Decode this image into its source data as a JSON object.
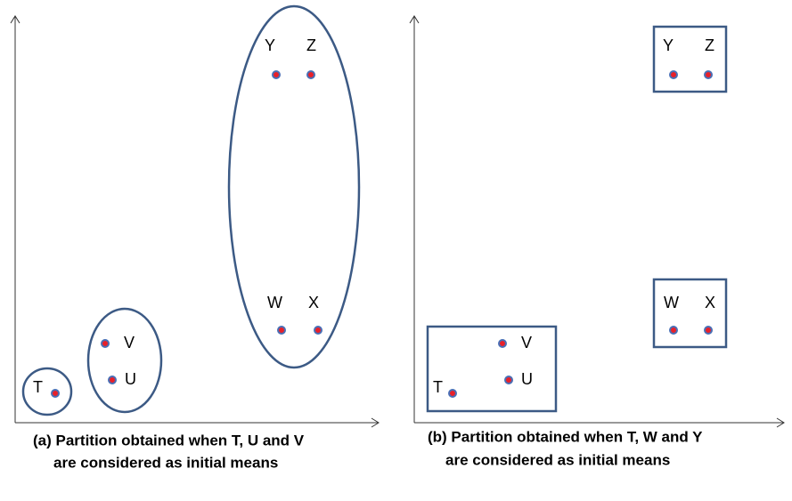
{
  "panels": [
    {
      "points": [
        "T",
        "U",
        "V",
        "W",
        "X",
        "Y",
        "Z"
      ],
      "caption": [
        "(a) Partition obtained when T, U and V",
        "are considered as initial means"
      ]
    },
    {
      "points": [
        "T",
        "U",
        "V",
        "W",
        "X",
        "Y",
        "Z"
      ],
      "caption": [
        "(b) Partition obtained when T, W and Y",
        "are considered as initial means"
      ]
    }
  ]
}
